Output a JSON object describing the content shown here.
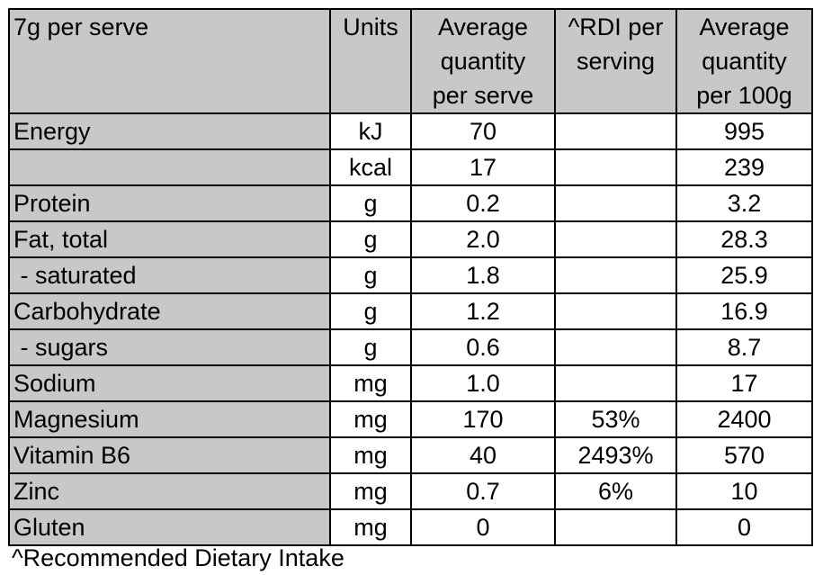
{
  "table": {
    "headers": {
      "nutrient": [
        "7g per serve"
      ],
      "units": [
        "Units"
      ],
      "per_serve": [
        "Average",
        "quantity",
        "per serve"
      ],
      "rdi": [
        "^RDI per",
        "serving"
      ],
      "per_100g": [
        "Average",
        "quantity",
        "per 100g"
      ]
    },
    "rows": [
      {
        "nutrient": "Energy",
        "unit": "kJ",
        "per_serve": "70",
        "rdi": "",
        "per_100g": "995"
      },
      {
        "nutrient": "",
        "unit": "kcal",
        "per_serve": "17",
        "rdi": "",
        "per_100g": "239"
      },
      {
        "nutrient": "Protein",
        "unit": "g",
        "per_serve": "0.2",
        "rdi": "",
        "per_100g": "3.2"
      },
      {
        "nutrient": "Fat, total",
        "unit": "g",
        "per_serve": "2.0",
        "rdi": "",
        "per_100g": "28.3"
      },
      {
        "nutrient": " - saturated",
        "unit": "g",
        "per_serve": "1.8",
        "rdi": "",
        "per_100g": "25.9"
      },
      {
        "nutrient": "Carbohydrate",
        "unit": "g",
        "per_serve": "1.2",
        "rdi": "",
        "per_100g": "16.9"
      },
      {
        "nutrient": " - sugars",
        "unit": "g",
        "per_serve": "0.6",
        "rdi": "",
        "per_100g": "8.7"
      },
      {
        "nutrient": "Sodium",
        "unit": "mg",
        "per_serve": "1.0",
        "rdi": "",
        "per_100g": "17"
      },
      {
        "nutrient": "Magnesium",
        "unit": "mg",
        "per_serve": "170",
        "rdi": "53%",
        "per_100g": "2400"
      },
      {
        "nutrient": "Vitamin B6",
        "unit": "mg",
        "per_serve": "40",
        "rdi": "2493%",
        "per_100g": "570"
      },
      {
        "nutrient": "Zinc",
        "unit": "mg",
        "per_serve": "0.7",
        "rdi": "6%",
        "per_100g": "10"
      },
      {
        "nutrient": "Gluten",
        "unit": "mg",
        "per_serve": "0",
        "rdi": "",
        "per_100g": "0"
      }
    ]
  },
  "footnote": "^Recommended Dietary Intake"
}
